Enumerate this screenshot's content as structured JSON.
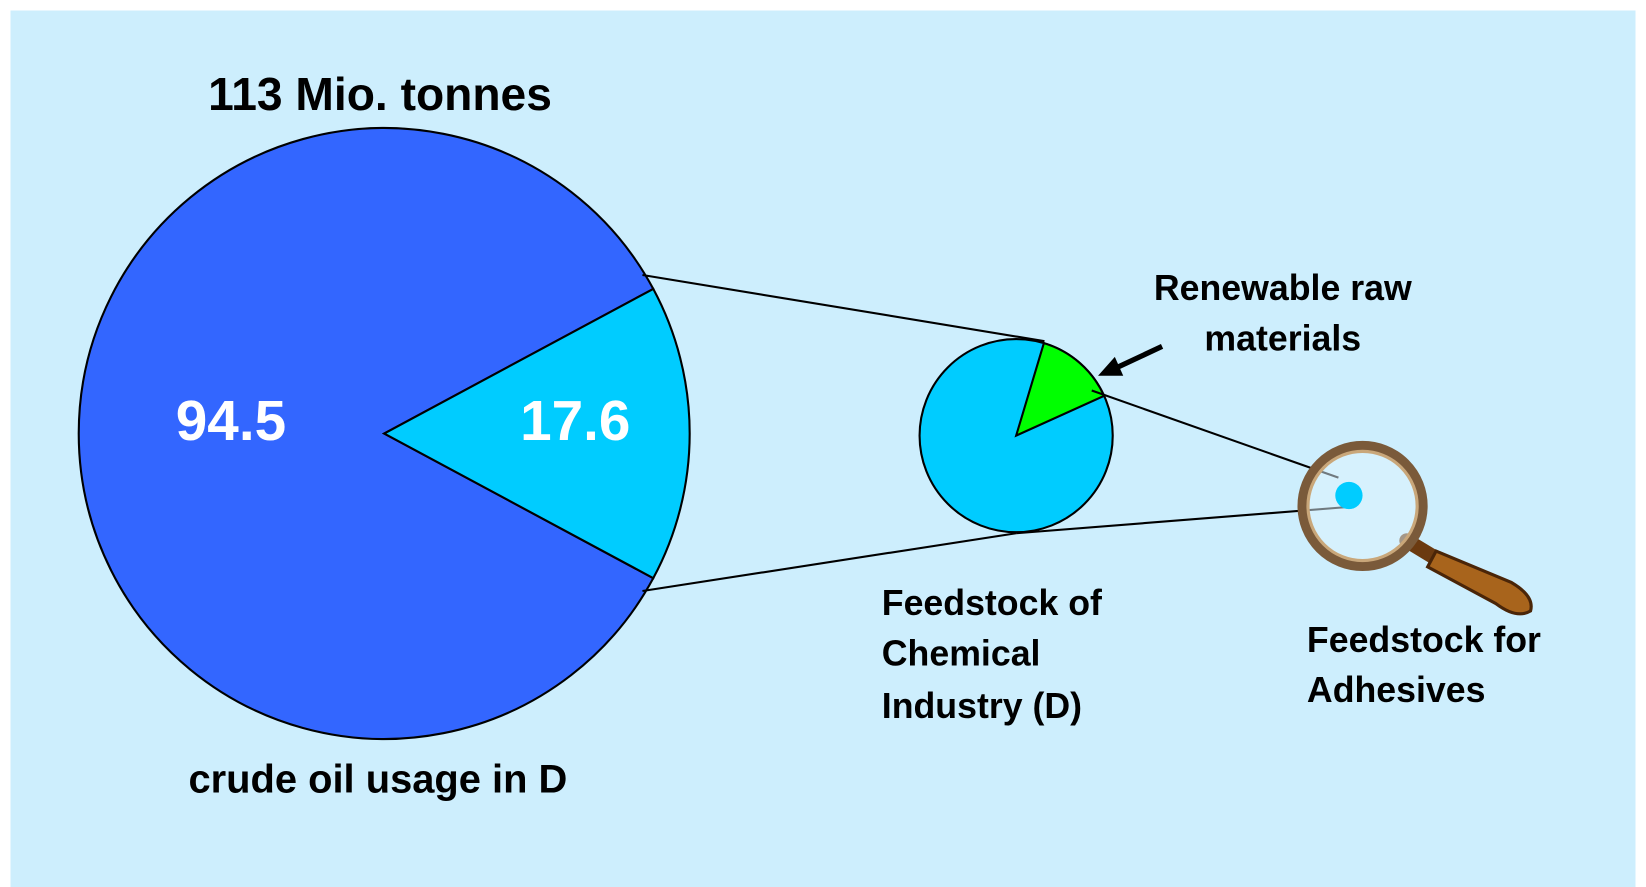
{
  "chart_data": {
    "type": "pie",
    "title": "113 Mio. tonnes",
    "caption": "crude oil usage in D",
    "values": [
      94.5,
      17.6
    ],
    "colors": [
      "#3366ff",
      "#00ccff"
    ],
    "label_color": "#ffffff",
    "annotations": {
      "renewable": [
        "Renewable raw",
        "materials"
      ],
      "chemical": [
        "Feedstock of",
        "Chemical",
        "Industry (D)"
      ],
      "adhesives": [
        "Feedstock for",
        "Adhesives"
      ]
    }
  }
}
